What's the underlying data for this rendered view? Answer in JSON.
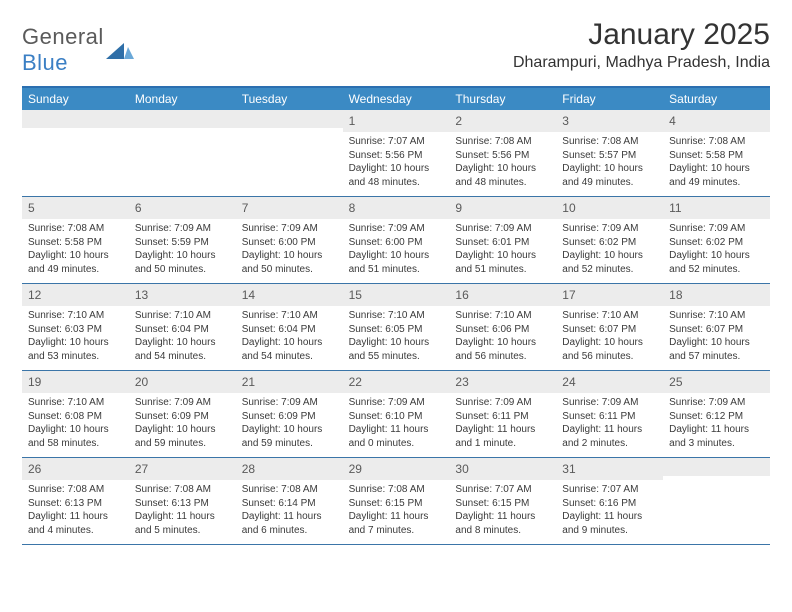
{
  "brand": {
    "word1": "General",
    "word2": "Blue"
  },
  "title": "January 2025",
  "location": "Dharampuri, Madhya Pradesh, India",
  "colors": {
    "header_bg": "#3b8ac4",
    "header_border_top": "#2b6fb0",
    "week_border": "#3b75a8",
    "daynum_bg": "#ececec",
    "text": "#333333",
    "logo_gray": "#5a5a5a",
    "logo_blue": "#3b7fc4"
  },
  "dow": [
    "Sunday",
    "Monday",
    "Tuesday",
    "Wednesday",
    "Thursday",
    "Friday",
    "Saturday"
  ],
  "weeks": [
    [
      null,
      null,
      null,
      {
        "n": "1",
        "sr": "7:07 AM",
        "ss": "5:56 PM",
        "dl": "10 hours and 48 minutes."
      },
      {
        "n": "2",
        "sr": "7:08 AM",
        "ss": "5:56 PM",
        "dl": "10 hours and 48 minutes."
      },
      {
        "n": "3",
        "sr": "7:08 AM",
        "ss": "5:57 PM",
        "dl": "10 hours and 49 minutes."
      },
      {
        "n": "4",
        "sr": "7:08 AM",
        "ss": "5:58 PM",
        "dl": "10 hours and 49 minutes."
      }
    ],
    [
      {
        "n": "5",
        "sr": "7:08 AM",
        "ss": "5:58 PM",
        "dl": "10 hours and 49 minutes."
      },
      {
        "n": "6",
        "sr": "7:09 AM",
        "ss": "5:59 PM",
        "dl": "10 hours and 50 minutes."
      },
      {
        "n": "7",
        "sr": "7:09 AM",
        "ss": "6:00 PM",
        "dl": "10 hours and 50 minutes."
      },
      {
        "n": "8",
        "sr": "7:09 AM",
        "ss": "6:00 PM",
        "dl": "10 hours and 51 minutes."
      },
      {
        "n": "9",
        "sr": "7:09 AM",
        "ss": "6:01 PM",
        "dl": "10 hours and 51 minutes."
      },
      {
        "n": "10",
        "sr": "7:09 AM",
        "ss": "6:02 PM",
        "dl": "10 hours and 52 minutes."
      },
      {
        "n": "11",
        "sr": "7:09 AM",
        "ss": "6:02 PM",
        "dl": "10 hours and 52 minutes."
      }
    ],
    [
      {
        "n": "12",
        "sr": "7:10 AM",
        "ss": "6:03 PM",
        "dl": "10 hours and 53 minutes."
      },
      {
        "n": "13",
        "sr": "7:10 AM",
        "ss": "6:04 PM",
        "dl": "10 hours and 54 minutes."
      },
      {
        "n": "14",
        "sr": "7:10 AM",
        "ss": "6:04 PM",
        "dl": "10 hours and 54 minutes."
      },
      {
        "n": "15",
        "sr": "7:10 AM",
        "ss": "6:05 PM",
        "dl": "10 hours and 55 minutes."
      },
      {
        "n": "16",
        "sr": "7:10 AM",
        "ss": "6:06 PM",
        "dl": "10 hours and 56 minutes."
      },
      {
        "n": "17",
        "sr": "7:10 AM",
        "ss": "6:07 PM",
        "dl": "10 hours and 56 minutes."
      },
      {
        "n": "18",
        "sr": "7:10 AM",
        "ss": "6:07 PM",
        "dl": "10 hours and 57 minutes."
      }
    ],
    [
      {
        "n": "19",
        "sr": "7:10 AM",
        "ss": "6:08 PM",
        "dl": "10 hours and 58 minutes."
      },
      {
        "n": "20",
        "sr": "7:09 AM",
        "ss": "6:09 PM",
        "dl": "10 hours and 59 minutes."
      },
      {
        "n": "21",
        "sr": "7:09 AM",
        "ss": "6:09 PM",
        "dl": "10 hours and 59 minutes."
      },
      {
        "n": "22",
        "sr": "7:09 AM",
        "ss": "6:10 PM",
        "dl": "11 hours and 0 minutes."
      },
      {
        "n": "23",
        "sr": "7:09 AM",
        "ss": "6:11 PM",
        "dl": "11 hours and 1 minute."
      },
      {
        "n": "24",
        "sr": "7:09 AM",
        "ss": "6:11 PM",
        "dl": "11 hours and 2 minutes."
      },
      {
        "n": "25",
        "sr": "7:09 AM",
        "ss": "6:12 PM",
        "dl": "11 hours and 3 minutes."
      }
    ],
    [
      {
        "n": "26",
        "sr": "7:08 AM",
        "ss": "6:13 PM",
        "dl": "11 hours and 4 minutes."
      },
      {
        "n": "27",
        "sr": "7:08 AM",
        "ss": "6:13 PM",
        "dl": "11 hours and 5 minutes."
      },
      {
        "n": "28",
        "sr": "7:08 AM",
        "ss": "6:14 PM",
        "dl": "11 hours and 6 minutes."
      },
      {
        "n": "29",
        "sr": "7:08 AM",
        "ss": "6:15 PM",
        "dl": "11 hours and 7 minutes."
      },
      {
        "n": "30",
        "sr": "7:07 AM",
        "ss": "6:15 PM",
        "dl": "11 hours and 8 minutes."
      },
      {
        "n": "31",
        "sr": "7:07 AM",
        "ss": "6:16 PM",
        "dl": "11 hours and 9 minutes."
      },
      null
    ]
  ],
  "labels": {
    "sunrise": "Sunrise: ",
    "sunset": "Sunset: ",
    "daylight": "Daylight: "
  }
}
